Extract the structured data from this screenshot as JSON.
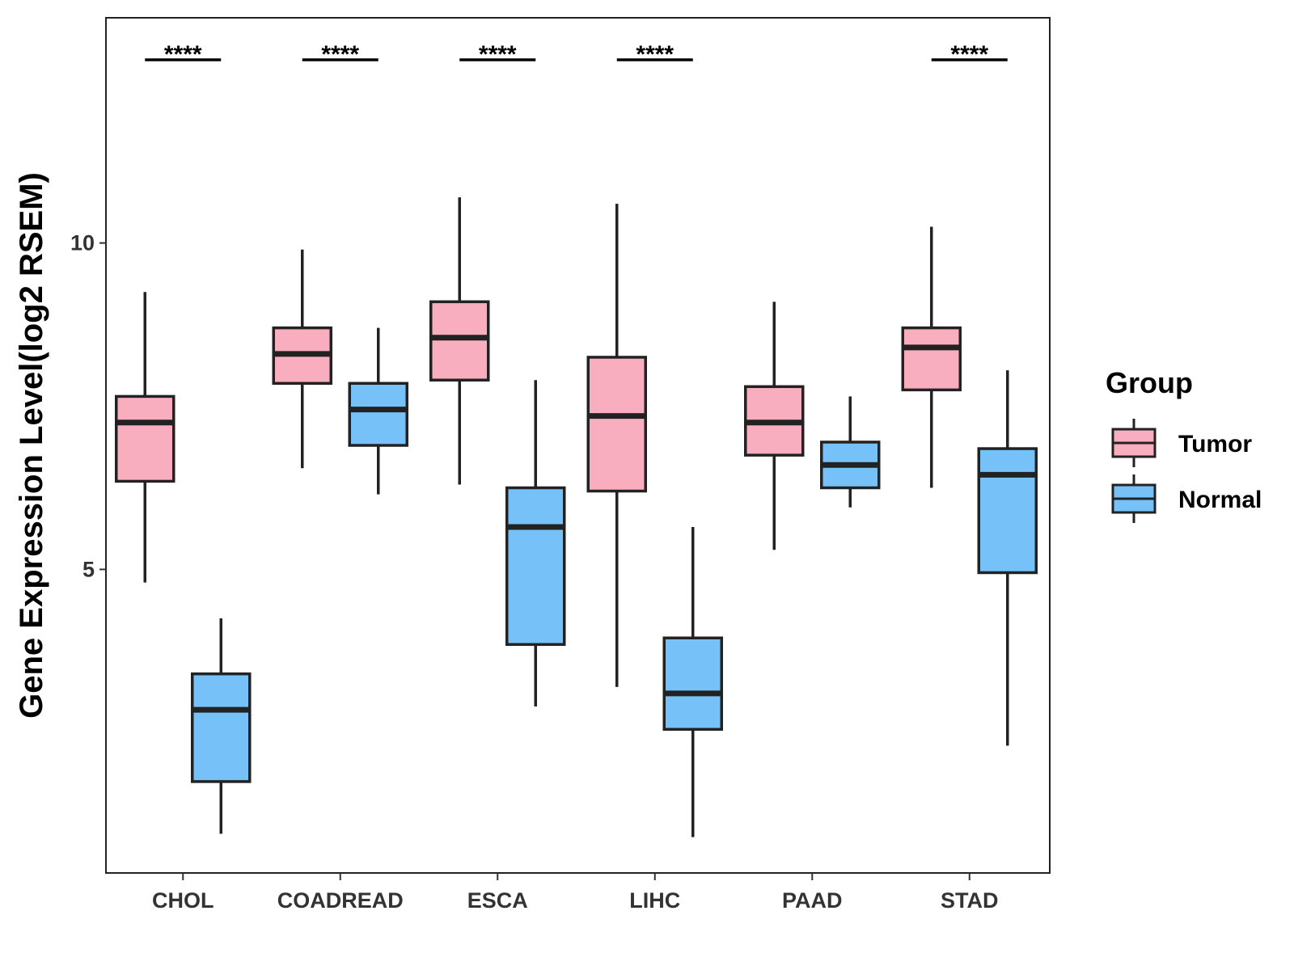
{
  "chart_data": {
    "type": "boxplot",
    "title": "",
    "xlabel": "",
    "ylabel": "Gene Expression Level(log2 RSEM)",
    "ylim": [
      0.35,
      13.45
    ],
    "yticks": [
      5,
      10
    ],
    "categories": [
      "CHOL",
      "COADREAD",
      "ESCA",
      "LIHC",
      "PAAD",
      "STAD"
    ],
    "legend": {
      "title": "Group",
      "position": "right",
      "entries": [
        "Tumor",
        "Normal"
      ]
    },
    "series": [
      {
        "name": "Tumor",
        "color": "#F9AEC0",
        "boxes": [
          {
            "min": 4.8,
            "q1": 6.35,
            "median": 7.25,
            "q3": 7.65,
            "max": 9.25
          },
          {
            "min": 6.55,
            "q1": 7.85,
            "median": 8.3,
            "q3": 8.7,
            "max": 9.9
          },
          {
            "min": 6.3,
            "q1": 7.9,
            "median": 8.55,
            "q3": 9.1,
            "max": 10.7
          },
          {
            "min": 3.2,
            "q1": 6.2,
            "median": 7.35,
            "q3": 8.25,
            "max": 10.6
          },
          {
            "min": 5.3,
            "q1": 6.75,
            "median": 7.25,
            "q3": 7.8,
            "max": 9.1
          },
          {
            "min": 6.25,
            "q1": 7.75,
            "median": 8.4,
            "q3": 8.7,
            "max": 10.25
          }
        ]
      },
      {
        "name": "Normal",
        "color": "#76C1F8",
        "boxes": [
          {
            "min": 0.95,
            "q1": 1.75,
            "median": 2.85,
            "q3": 3.4,
            "max": 4.25
          },
          {
            "min": 6.15,
            "q1": 6.9,
            "median": 7.45,
            "q3": 7.85,
            "max": 8.7
          },
          {
            "min": 2.9,
            "q1": 3.85,
            "median": 5.65,
            "q3": 6.25,
            "max": 7.9
          },
          {
            "min": 0.9,
            "q1": 2.55,
            "median": 3.1,
            "q3": 3.95,
            "max": 5.65
          },
          {
            "min": 5.95,
            "q1": 6.25,
            "median": 6.6,
            "q3": 6.95,
            "max": 7.65
          },
          {
            "min": 2.3,
            "q1": 4.95,
            "median": 6.45,
            "q3": 6.85,
            "max": 8.05
          }
        ]
      }
    ],
    "significance": [
      {
        "category": "CHOL",
        "label": "****"
      },
      {
        "category": "COADREAD",
        "label": "****"
      },
      {
        "category": "ESCA",
        "label": "****"
      },
      {
        "category": "LIHC",
        "label": "****"
      },
      {
        "category": "PAAD",
        "label": ""
      },
      {
        "category": "STAD",
        "label": "****"
      }
    ],
    "grid": false
  }
}
